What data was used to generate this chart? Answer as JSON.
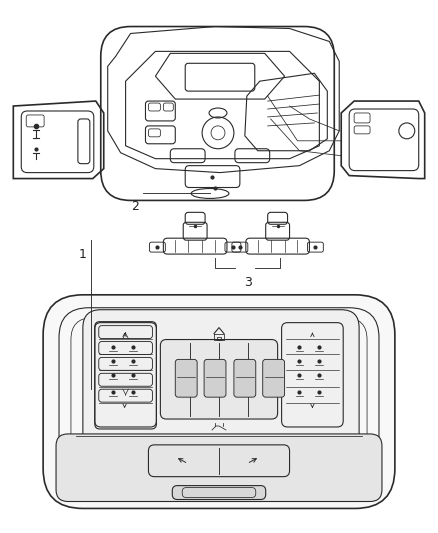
{
  "bg_color": "#ffffff",
  "line_color": "#2a2a2a",
  "label_color": "#222222",
  "fig_width": 4.38,
  "fig_height": 5.33,
  "dpi": 100
}
